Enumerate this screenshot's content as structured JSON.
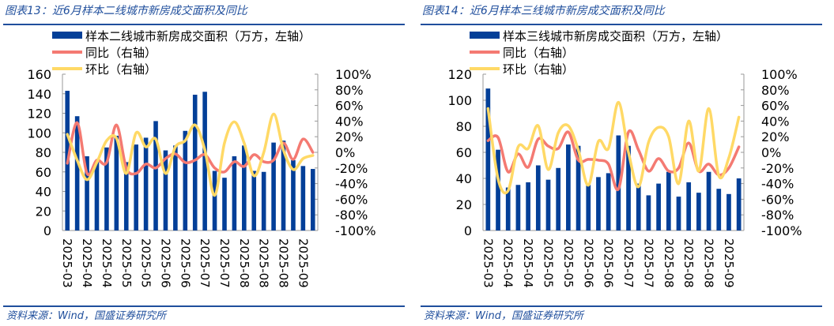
{
  "charts": [
    {
      "title": "图表13：近6月样本二线城市新房成交面积及同比",
      "source": "资料来源：Wind，国盛证券研究所"
    },
    {
      "title": "图表14：近6月样本三线城市新房成交面积及同比",
      "source": "资料来源：Wind，国盛证券研究所"
    }
  ],
  "colors": {
    "bar": "#033f98",
    "yoy": "#f47a72",
    "mom": "#ffd966",
    "title": "#1f4e9c"
  },
  "chart_data": [
    {
      "type": "bar+line",
      "title": "图表13：近6月样本二线城市新房成交面积及同比",
      "x_tick_labels": [
        "2025-03",
        "2025-04",
        "2025-04",
        "2025-05",
        "2025-05",
        "2025-06",
        "2025-06",
        "2025-07",
        "2025-07",
        "2025-08",
        "2025-08",
        "2025-08",
        "2025-09"
      ],
      "left_axis": {
        "ylim": [
          0,
          160
        ],
        "ticks": [
          "0",
          "20",
          "40",
          "60",
          "80",
          "100",
          "120",
          "140",
          "160"
        ]
      },
      "right_axis": {
        "ylim": [
          -100,
          100
        ],
        "ticks": [
          "-100%",
          "-80%",
          "-60%",
          "-40%",
          "-20%",
          "0%",
          "20%",
          "40%",
          "60%",
          "80%",
          "100%"
        ]
      },
      "legend_placement": "top-left",
      "series": [
        {
          "name": "样本二线城市新房成交面积（万方，左轴）",
          "type": "bar",
          "axis": "left",
          "values": [
            143,
            117,
            76,
            70,
            85,
            97,
            70,
            88,
            95,
            112,
            82,
            87,
            102,
            139,
            142,
            61,
            54,
            76,
            87,
            61,
            60,
            90,
            92,
            72,
            66,
            63
          ]
        },
        {
          "name": "同比（右轴）",
          "type": "line",
          "axis": "right",
          "values": [
            -14,
            38,
            -27,
            -10,
            -13,
            35,
            -20,
            -27,
            -15,
            -20,
            -8,
            -2,
            -13,
            -10,
            -3,
            -20,
            -25,
            -12,
            -18,
            -3,
            -12,
            -10,
            12,
            -9,
            17,
            0
          ]
        },
        {
          "name": "环比（右轴）",
          "type": "line",
          "axis": "right",
          "values": [
            23,
            -10,
            -35,
            -13,
            15,
            18,
            -27,
            25,
            7,
            17,
            -27,
            7,
            15,
            35,
            3,
            -55,
            12,
            39,
            12,
            -30,
            0,
            49,
            3,
            -22,
            -8,
            -4
          ]
        }
      ]
    },
    {
      "type": "bar+line",
      "title": "图表14：近6月样本三线城市新房成交面积及同比",
      "x_tick_labels": [
        "2025-03",
        "2025-04",
        "2025-04",
        "2025-05",
        "2025-05",
        "2025-06",
        "2025-06",
        "2025-07",
        "2025-07",
        "2025-08",
        "2025-08",
        "2025-08",
        "2025-09"
      ],
      "left_axis": {
        "ylim": [
          0,
          120
        ],
        "ticks": [
          "0",
          "20",
          "40",
          "60",
          "80",
          "100",
          "120"
        ]
      },
      "right_axis": {
        "ylim": [
          -100,
          100
        ],
        "ticks": [
          "-100%",
          "-80%",
          "-60%",
          "-40%",
          "-20%",
          "0%",
          "20%",
          "40%",
          "60%",
          "80%",
          "100%"
        ]
      },
      "legend_placement": "top-left",
      "series": [
        {
          "name": "样本三线城市新房成交面积（万方，左轴）",
          "type": "bar",
          "axis": "left",
          "values": [
            109,
            62,
            33,
            35,
            37,
            50,
            39,
            48,
            66,
            65,
            35,
            41,
            44,
            73,
            65,
            36,
            27,
            36,
            45,
            26,
            37,
            29,
            45,
            32,
            28,
            40
          ]
        },
        {
          "name": "同比（右轴）",
          "type": "line",
          "axis": "right",
          "values": [
            15,
            19,
            -25,
            -2,
            -19,
            17,
            8,
            5,
            26,
            -10,
            -9,
            -10,
            -15,
            -47,
            26,
            3,
            -24,
            -8,
            -24,
            -20,
            12,
            -24,
            -15,
            -29,
            -20,
            7
          ]
        },
        {
          "name": "环比（右轴）",
          "type": "line",
          "axis": "right",
          "values": [
            56,
            -34,
            -49,
            7,
            5,
            34,
            -22,
            25,
            34,
            3,
            -42,
            14,
            5,
            64,
            0,
            -44,
            13,
            32,
            20,
            -40,
            40,
            -24,
            56,
            -30,
            -7,
            45
          ]
        }
      ]
    }
  ]
}
